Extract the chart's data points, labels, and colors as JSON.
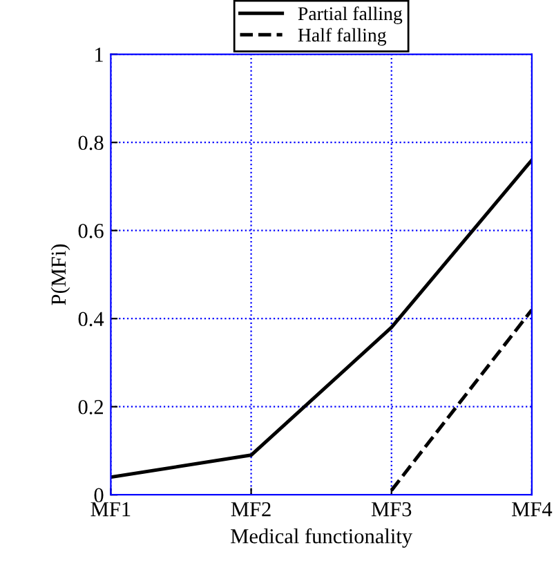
{
  "chart_data": {
    "type": "line",
    "xlabel": "Medical functionality",
    "ylabel": "P(MFi)",
    "categories": [
      "MF1",
      "MF2",
      "MF3",
      "MF4"
    ],
    "series": [
      {
        "name": "Partial falling",
        "color": "#000000",
        "line_style": "solid",
        "values": [
          0.04,
          0.09,
          0.38,
          0.76
        ]
      },
      {
        "name": "Half falling",
        "color": "#000000",
        "line_style": "dashed",
        "values": [
          null,
          null,
          0.01,
          0.42
        ]
      }
    ],
    "ylim": [
      0,
      1
    ],
    "yticks": [
      0,
      0.2,
      0.4,
      0.6,
      0.8,
      1
    ],
    "grid": true,
    "legend": "top",
    "marker": "none"
  }
}
